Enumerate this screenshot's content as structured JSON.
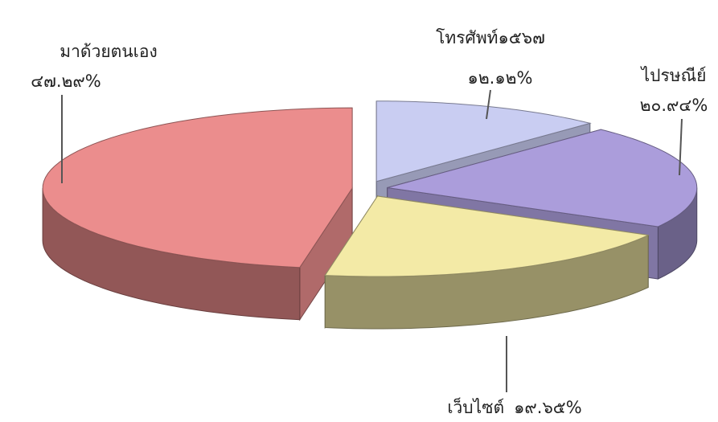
{
  "chart_data": {
    "type": "pie3d",
    "categories": [
      "โทรศัพท์๑๕๖๗",
      "ไปรษณีย์",
      "เว็บไซต์",
      "มาด้วยตนเอง"
    ],
    "values": [
      12.12,
      20.94,
      19.65,
      47.29
    ],
    "value_labels": [
      "๑๒.๑๒%",
      "๒๐.๙๔%",
      "๑๙.๖๕%",
      "๔๗.๒๙%"
    ],
    "colors": [
      "#c9cdf2",
      "#ab9ddb",
      "#f3eaa6",
      "#eb8d8d"
    ]
  }
}
